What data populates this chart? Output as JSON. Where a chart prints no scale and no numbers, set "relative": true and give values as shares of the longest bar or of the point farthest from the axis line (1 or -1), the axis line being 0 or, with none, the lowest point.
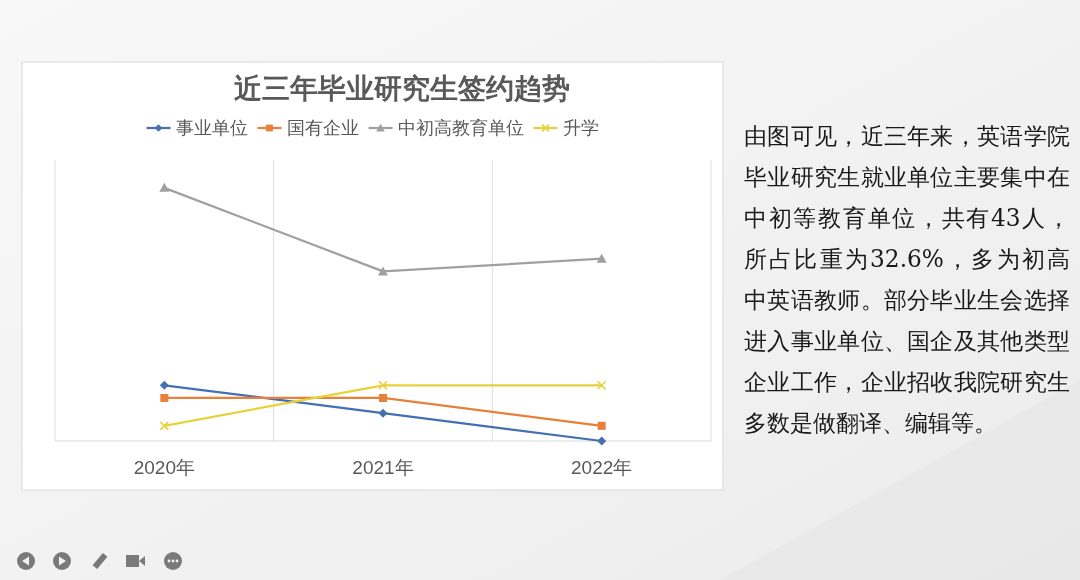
{
  "chart_data": {
    "type": "line",
    "title": "近三年毕业研究生签约趋势",
    "categories": [
      "2020年",
      "2021年",
      "2022年"
    ],
    "relative": true,
    "series": [
      {
        "name": "事业单位",
        "color": "#4470b0",
        "marker": "diamond",
        "values": [
          0.22,
          0.11,
          0
        ]
      },
      {
        "name": "国有企业",
        "color": "#e8803a",
        "marker": "square",
        "values": [
          0.17,
          0.17,
          0.06
        ]
      },
      {
        "name": "中初高教育单位",
        "color": "#a0a0a0",
        "marker": "triangle",
        "values": [
          1,
          0.67,
          0.72
        ]
      },
      {
        "name": "升学",
        "color": "#e6d23a",
        "marker": "cross",
        "values": [
          0.06,
          0.22,
          0.22
        ]
      }
    ],
    "grid": "x",
    "legend": "top",
    "annotations": [
      "由图可见，近三年来，英语学院毕业研究生就业单位主要集中在中初等教育单位，共有43人，所占比重为32.6%，多为初高中英语教师。部分毕业生会选择进入事业单位、国企及其他类型企业工作，企业招收我院研究生多数是做翻译、编辑等。"
    ]
  }
}
